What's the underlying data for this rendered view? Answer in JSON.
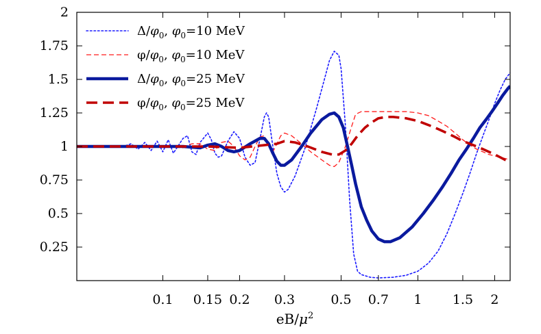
{
  "chart_data": {
    "type": "line",
    "xscale": "log",
    "xlim": [
      0.046,
      2.3
    ],
    "ylim": [
      0,
      2
    ],
    "grid": false,
    "legend_position": "top-left",
    "xlabel_parts": {
      "base": "eB/",
      "var": "μ",
      "sup": "2"
    },
    "x_ticks": [
      {
        "value": 0.1,
        "label": "0.1"
      },
      {
        "value": 0.15,
        "label": "0.15"
      },
      {
        "value": 0.2,
        "label": "0.2"
      },
      {
        "value": 0.3,
        "label": "0.3"
      },
      {
        "value": 0.5,
        "label": "0.5"
      },
      {
        "value": 0.7,
        "label": "0.7"
      },
      {
        "value": 1,
        "label": "1"
      },
      {
        "value": 1.5,
        "label": "1.5"
      },
      {
        "value": 2,
        "label": "2"
      }
    ],
    "y_ticks": [
      {
        "value": 0.25,
        "label": "0.25"
      },
      {
        "value": 0.5,
        "label": "0.5"
      },
      {
        "value": 0.75,
        "label": "0.75"
      },
      {
        "value": 1,
        "label": "1"
      },
      {
        "value": 1.25,
        "label": "1.25"
      },
      {
        "value": 1.5,
        "label": "1.5"
      },
      {
        "value": 1.75,
        "label": "1.75"
      },
      {
        "value": 2,
        "label": "2"
      }
    ],
    "series": [
      {
        "name": "Δ/φ0, φ0=10 MeV",
        "legend": {
          "num": "Δ",
          "den": "φ",
          "den_sub": "0",
          "sep": ", ",
          "par": "φ",
          "par_sub": "0",
          "rest": "=10 MeV"
        },
        "color": "#1a1aff",
        "style": "dotted",
        "width": 1.6,
        "points": [
          [
            0.046,
            1.0
          ],
          [
            0.06,
            1.0
          ],
          [
            0.07,
            1.0
          ],
          [
            0.075,
            1.02
          ],
          [
            0.08,
            0.98
          ],
          [
            0.085,
            1.03
          ],
          [
            0.09,
            0.97
          ],
          [
            0.095,
            1.04
          ],
          [
            0.1,
            0.96
          ],
          [
            0.105,
            1.05
          ],
          [
            0.11,
            0.95
          ],
          [
            0.12,
            1.06
          ],
          [
            0.125,
            1.08
          ],
          [
            0.13,
            0.96
          ],
          [
            0.135,
            0.94
          ],
          [
            0.14,
            1.03
          ],
          [
            0.15,
            1.1
          ],
          [
            0.155,
            1.05
          ],
          [
            0.16,
            0.95
          ],
          [
            0.165,
            0.92
          ],
          [
            0.17,
            0.93
          ],
          [
            0.18,
            1.04
          ],
          [
            0.19,
            1.11
          ],
          [
            0.2,
            1.06
          ],
          [
            0.21,
            0.92
          ],
          [
            0.22,
            0.86
          ],
          [
            0.23,
            0.88
          ],
          [
            0.24,
            1.05
          ],
          [
            0.25,
            1.22
          ],
          [
            0.255,
            1.25
          ],
          [
            0.26,
            1.22
          ],
          [
            0.27,
            1.0
          ],
          [
            0.28,
            0.8
          ],
          [
            0.29,
            0.7
          ],
          [
            0.3,
            0.66
          ],
          [
            0.31,
            0.68
          ],
          [
            0.33,
            0.78
          ],
          [
            0.36,
            0.98
          ],
          [
            0.4,
            1.28
          ],
          [
            0.43,
            1.5
          ],
          [
            0.45,
            1.64
          ],
          [
            0.47,
            1.71
          ],
          [
            0.49,
            1.68
          ],
          [
            0.5,
            1.58
          ],
          [
            0.52,
            1.15
          ],
          [
            0.54,
            0.6
          ],
          [
            0.56,
            0.2
          ],
          [
            0.58,
            0.07
          ],
          [
            0.6,
            0.045
          ],
          [
            0.65,
            0.025
          ],
          [
            0.7,
            0.02
          ],
          [
            0.8,
            0.025
          ],
          [
            0.9,
            0.04
          ],
          [
            1.0,
            0.07
          ],
          [
            1.1,
            0.13
          ],
          [
            1.2,
            0.22
          ],
          [
            1.3,
            0.35
          ],
          [
            1.4,
            0.5
          ],
          [
            1.5,
            0.65
          ],
          [
            1.6,
            0.8
          ],
          [
            1.7,
            0.95
          ],
          [
            1.8,
            1.08
          ],
          [
            1.9,
            1.2
          ],
          [
            2.0,
            1.32
          ],
          [
            2.1,
            1.42
          ],
          [
            2.2,
            1.5
          ],
          [
            2.3,
            1.55
          ]
        ]
      },
      {
        "name": "φ/φ0, φ0=10 MeV",
        "legend": {
          "num": "φ",
          "den": "φ",
          "den_sub": "0",
          "sep": ", ",
          "par": "φ",
          "par_sub": "0",
          "rest": "=10 MeV"
        },
        "color": "#ff1a1a",
        "style": "dashed",
        "width": 1.3,
        "points": [
          [
            0.046,
            1.0
          ],
          [
            0.08,
            1.0
          ],
          [
            0.1,
            1.0
          ],
          [
            0.12,
            0.99
          ],
          [
            0.13,
            1.02
          ],
          [
            0.14,
            1.02
          ],
          [
            0.15,
            0.98
          ],
          [
            0.16,
            0.97
          ],
          [
            0.17,
            1.03
          ],
          [
            0.18,
            1.04
          ],
          [
            0.19,
            1.0
          ],
          [
            0.2,
            0.93
          ],
          [
            0.21,
            0.9
          ],
          [
            0.22,
            0.92
          ],
          [
            0.23,
            1.0
          ],
          [
            0.24,
            1.07
          ],
          [
            0.25,
            1.08
          ],
          [
            0.26,
            1.02
          ],
          [
            0.27,
            0.96
          ],
          [
            0.28,
            1.02
          ],
          [
            0.29,
            1.08
          ],
          [
            0.3,
            1.1
          ],
          [
            0.32,
            1.08
          ],
          [
            0.35,
            1.02
          ],
          [
            0.38,
            0.96
          ],
          [
            0.42,
            0.9
          ],
          [
            0.45,
            0.86
          ],
          [
            0.47,
            0.85
          ],
          [
            0.49,
            0.88
          ],
          [
            0.52,
            1.0
          ],
          [
            0.55,
            1.15
          ],
          [
            0.57,
            1.24
          ],
          [
            0.6,
            1.26
          ],
          [
            0.7,
            1.26
          ],
          [
            0.8,
            1.26
          ],
          [
            0.9,
            1.26
          ],
          [
            1.0,
            1.25
          ],
          [
            1.1,
            1.23
          ],
          [
            1.2,
            1.19
          ],
          [
            1.3,
            1.15
          ],
          [
            1.4,
            1.1
          ],
          [
            1.5,
            1.05
          ],
          [
            1.6,
            1.01
          ],
          [
            1.7,
            0.98
          ],
          [
            1.8,
            0.96
          ],
          [
            1.9,
            0.94
          ],
          [
            2.0,
            0.93
          ],
          [
            2.1,
            0.92
          ],
          [
            2.2,
            0.91
          ],
          [
            2.3,
            0.9
          ]
        ]
      },
      {
        "name": "Δ/φ0, φ0=25 MeV",
        "legend": {
          "num": "Δ",
          "den": "φ",
          "den_sub": "0",
          "sep": ", ",
          "par": "φ",
          "par_sub": "0",
          "rest": "=25 MeV"
        },
        "color": "#0a1a9e",
        "style": "solid",
        "width": 4.5,
        "points": [
          [
            0.046,
            1.0
          ],
          [
            0.1,
            1.0
          ],
          [
            0.12,
            1.0
          ],
          [
            0.14,
            0.99
          ],
          [
            0.15,
            1.01
          ],
          [
            0.16,
            1.02
          ],
          [
            0.17,
            1.0
          ],
          [
            0.18,
            0.97
          ],
          [
            0.19,
            0.96
          ],
          [
            0.2,
            0.97
          ],
          [
            0.22,
            1.02
          ],
          [
            0.24,
            1.06
          ],
          [
            0.25,
            1.06
          ],
          [
            0.26,
            1.02
          ],
          [
            0.27,
            0.95
          ],
          [
            0.28,
            0.89
          ],
          [
            0.29,
            0.86
          ],
          [
            0.3,
            0.86
          ],
          [
            0.32,
            0.9
          ],
          [
            0.35,
            1.0
          ],
          [
            0.38,
            1.1
          ],
          [
            0.42,
            1.2
          ],
          [
            0.45,
            1.24
          ],
          [
            0.47,
            1.25
          ],
          [
            0.49,
            1.22
          ],
          [
            0.51,
            1.14
          ],
          [
            0.53,
            1.0
          ],
          [
            0.55,
            0.86
          ],
          [
            0.57,
            0.72
          ],
          [
            0.6,
            0.55
          ],
          [
            0.63,
            0.45
          ],
          [
            0.66,
            0.37
          ],
          [
            0.7,
            0.31
          ],
          [
            0.74,
            0.29
          ],
          [
            0.78,
            0.29
          ],
          [
            0.85,
            0.32
          ],
          [
            0.95,
            0.4
          ],
          [
            1.05,
            0.5
          ],
          [
            1.15,
            0.6
          ],
          [
            1.25,
            0.7
          ],
          [
            1.35,
            0.8
          ],
          [
            1.45,
            0.9
          ],
          [
            1.55,
            0.98
          ],
          [
            1.65,
            1.06
          ],
          [
            1.75,
            1.14
          ],
          [
            1.85,
            1.2
          ],
          [
            1.95,
            1.26
          ],
          [
            2.05,
            1.32
          ],
          [
            2.15,
            1.38
          ],
          [
            2.25,
            1.43
          ],
          [
            2.3,
            1.45
          ]
        ]
      },
      {
        "name": "φ/φ0, φ0=25 MeV",
        "legend": {
          "num": "φ",
          "den": "φ",
          "den_sub": "0",
          "sep": ", ",
          "par": "φ",
          "par_sub": "0",
          "rest": "=25 MeV"
        },
        "color": "#c00000",
        "style": "bigdash",
        "width": 3.6,
        "points": [
          [
            0.046,
            1.0
          ],
          [
            0.1,
            1.0
          ],
          [
            0.15,
            1.0
          ],
          [
            0.2,
            0.99
          ],
          [
            0.25,
            1.01
          ],
          [
            0.28,
            1.02
          ],
          [
            0.3,
            1.04
          ],
          [
            0.33,
            1.03
          ],
          [
            0.37,
            1.0
          ],
          [
            0.42,
            0.96
          ],
          [
            0.46,
            0.94
          ],
          [
            0.49,
            0.94
          ],
          [
            0.52,
            0.97
          ],
          [
            0.55,
            1.02
          ],
          [
            0.58,
            1.08
          ],
          [
            0.62,
            1.14
          ],
          [
            0.66,
            1.18
          ],
          [
            0.7,
            1.21
          ],
          [
            0.75,
            1.22
          ],
          [
            0.8,
            1.22
          ],
          [
            0.9,
            1.21
          ],
          [
            1.0,
            1.19
          ],
          [
            1.1,
            1.16
          ],
          [
            1.2,
            1.13
          ],
          [
            1.3,
            1.1
          ],
          [
            1.4,
            1.07
          ],
          [
            1.5,
            1.04
          ],
          [
            1.6,
            1.02
          ],
          [
            1.7,
            1.0
          ],
          [
            1.8,
            0.98
          ],
          [
            1.9,
            0.96
          ],
          [
            2.0,
            0.94
          ],
          [
            2.1,
            0.92
          ],
          [
            2.2,
            0.9
          ],
          [
            2.3,
            0.89
          ]
        ]
      }
    ]
  }
}
